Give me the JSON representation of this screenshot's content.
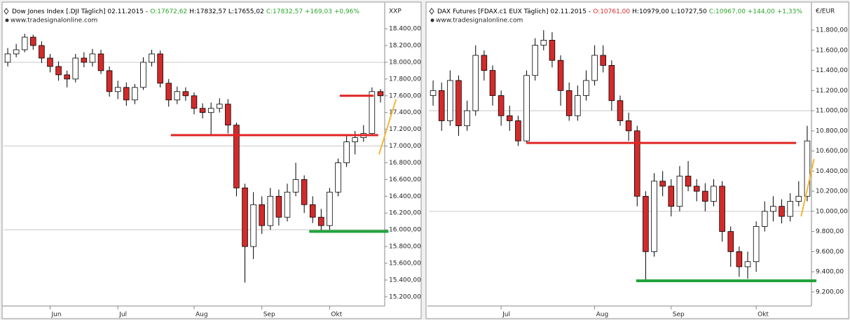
{
  "chart_data": [
    {
      "type": "candlestick",
      "header": [
        {
          "text": "Dow Jones Index [.DJI  Täglich] 02.11.2015 -",
          "color": "#000000"
        },
        {
          "text": "O:17672,62",
          "color": "#2aa52a"
        },
        {
          "text": "H:17832,57 L:17655,02",
          "color": "#000000"
        },
        {
          "text": "C:17832,57 +169,03 +0,96%",
          "color": "#2aa52a"
        }
      ],
      "source": "www.tradesignalonline.com",
      "unit": "XXP",
      "categories": [
        null,
        null,
        null,
        null,
        null,
        "Jun",
        null,
        null,
        null,
        null,
        null,
        null,
        null,
        "Jul",
        null,
        null,
        null,
        null,
        null,
        null,
        null,
        null,
        "Aug",
        null,
        null,
        null,
        null,
        null,
        null,
        null,
        "Sep",
        null,
        null,
        null,
        null,
        null,
        null,
        null,
        "Okt",
        null,
        null,
        null,
        null,
        null,
        null
      ],
      "open": [
        18000,
        18100,
        18150,
        18300,
        18200,
        18050,
        17950,
        17850,
        17800,
        18050,
        18000,
        18100,
        17900,
        17650,
        17700,
        17550,
        17700,
        18000,
        18100,
        17750,
        17550,
        17650,
        17600,
        17450,
        17400,
        17450,
        17500,
        17250,
        16500,
        15800,
        16300,
        16050,
        16400,
        16150,
        16450,
        16600,
        16300,
        16150,
        16050,
        16450,
        16800,
        17050,
        17100,
        17150,
        17650
      ],
      "high": [
        18170,
        18220,
        18340,
        18330,
        18250,
        18100,
        18010,
        17900,
        18100,
        18120,
        18160,
        18150,
        17950,
        17780,
        17760,
        17740,
        18060,
        18150,
        18140,
        17800,
        17710,
        17700,
        17640,
        17510,
        17520,
        17570,
        17560,
        17280,
        16550,
        16450,
        16400,
        16500,
        16480,
        16550,
        16800,
        16650,
        16400,
        16250,
        16500,
        16850,
        17120,
        17180,
        17250,
        17700,
        17680
      ],
      "low": [
        17950,
        18060,
        18120,
        18150,
        17990,
        17880,
        17780,
        17700,
        17760,
        17940,
        17950,
        17860,
        17590,
        17560,
        17480,
        17500,
        17670,
        17950,
        17700,
        17470,
        17500,
        17540,
        17380,
        17330,
        17130,
        17400,
        17150,
        16400,
        15370,
        15650,
        15950,
        16000,
        16050,
        16100,
        16400,
        16200,
        16080,
        15980,
        16000,
        16400,
        16750,
        16900,
        17050,
        17120,
        17520
      ],
      "close": [
        18100,
        18150,
        18300,
        18200,
        18050,
        17950,
        17850,
        17800,
        18050,
        18000,
        18100,
        17900,
        17650,
        17700,
        17550,
        17700,
        18000,
        18100,
        17750,
        17550,
        17650,
        17600,
        17450,
        17400,
        17450,
        17500,
        17250,
        16500,
        15800,
        16300,
        16050,
        16400,
        16150,
        16450,
        16600,
        16300,
        16150,
        16050,
        16450,
        16800,
        17050,
        17100,
        17150,
        17650,
        17600
      ],
      "up_color": "#ffffff",
      "down_color": "#d42a2a",
      "ylim": [
        15090,
        18660
      ],
      "yticks": [
        {
          "value": 15200,
          "label": "15.200,00"
        },
        {
          "value": 15400,
          "label": "15.400,00"
        },
        {
          "value": 15600,
          "label": "15.600,00"
        },
        {
          "value": 15800,
          "label": "15.800,00"
        },
        {
          "value": 16000,
          "label": "16.000,00"
        },
        {
          "value": 16200,
          "label": "16.200,00"
        },
        {
          "value": 16400,
          "label": "16.400,00"
        },
        {
          "value": 16600,
          "label": "16.600,00"
        },
        {
          "value": 16800,
          "label": "16.800,00"
        },
        {
          "value": 17000,
          "label": "17.000,00"
        },
        {
          "value": 17200,
          "label": "17.200,00"
        },
        {
          "value": 17400,
          "label": "17.400,00"
        },
        {
          "value": 17600,
          "label": "17.600,00"
        },
        {
          "value": 17800,
          "label": "17.800,00"
        },
        {
          "value": 18000,
          "label": "18.000,00"
        },
        {
          "value": 18200,
          "label": "18.200,00"
        },
        {
          "value": 18400,
          "label": "18.400,00"
        }
      ],
      "grid_lines": [
        16000,
        17000,
        18000
      ],
      "levels": [
        {
          "value": 17600,
          "color": "#e02424"
        },
        {
          "value": 17130,
          "color": "#e02424"
        },
        {
          "value": 15980,
          "color": "#22a33c"
        }
      ],
      "trend": {
        "from": 16900,
        "to": 17560,
        "color": "#f5b731"
      }
    },
    {
      "type": "candlestick",
      "header": [
        {
          "text": "DAX Futures [FDAX.c1 EUX  Täglich] 02.11.2015 -",
          "color": "#000000"
        },
        {
          "text": "O:10761,00",
          "color": "#d42a2a"
        },
        {
          "text": "H:10979,00 L:10727,50",
          "color": "#000000"
        },
        {
          "text": "C:10967,00 +144,00 +1,33%",
          "color": "#2aa52a"
        }
      ],
      "source": "www.tradesignalonline.com",
      "unit": "€/EUR",
      "categories": [
        null,
        null,
        null,
        null,
        null,
        null,
        null,
        null,
        "Jul",
        null,
        null,
        null,
        null,
        null,
        null,
        null,
        null,
        null,
        null,
        "Aug",
        null,
        null,
        null,
        null,
        null,
        null,
        null,
        null,
        "Sep",
        null,
        null,
        null,
        null,
        null,
        null,
        null,
        null,
        null,
        "Okt",
        null,
        null,
        null,
        null,
        null,
        null
      ],
      "open": [
        11150,
        11200,
        10900,
        11300,
        10850,
        11000,
        11550,
        11400,
        11150,
        10950,
        10900,
        10700,
        11350,
        11650,
        11700,
        11500,
        11200,
        10950,
        11150,
        11300,
        11550,
        11450,
        11100,
        10900,
        10800,
        10150,
        9600,
        10300,
        10250,
        10050,
        10350,
        10250,
        10200,
        10100,
        10250,
        9800,
        9600,
        9450,
        9500,
        9850,
        10000,
        10050,
        9950,
        10100,
        10150
      ],
      "high": [
        11300,
        11280,
        11400,
        11350,
        11100,
        11650,
        11600,
        11450,
        11200,
        11050,
        10950,
        11400,
        11720,
        11800,
        11780,
        11550,
        11280,
        11250,
        11400,
        11650,
        11650,
        11500,
        11150,
        10980,
        10850,
        10200,
        10380,
        10400,
        10320,
        10450,
        10500,
        10320,
        10280,
        10320,
        10300,
        9850,
        9650,
        9600,
        9900,
        10100,
        10150,
        10120,
        10180,
        10300,
        10850
      ],
      "low": [
        11050,
        10800,
        10850,
        10750,
        10800,
        10950,
        11300,
        11050,
        10850,
        10800,
        10650,
        10680,
        11300,
        11600,
        11430,
        11050,
        10900,
        10900,
        11100,
        11250,
        11380,
        11000,
        10850,
        10700,
        10050,
        9300,
        9550,
        10150,
        9950,
        10000,
        10200,
        10100,
        10000,
        10050,
        9700,
        9450,
        9350,
        9330,
        9400,
        9800,
        9900,
        9880,
        9900,
        10050,
        10100
      ],
      "close": [
        11200,
        10900,
        11300,
        10850,
        11000,
        11550,
        11400,
        11150,
        10950,
        10900,
        10700,
        11350,
        11650,
        11700,
        11500,
        11200,
        10950,
        11150,
        11300,
        11550,
        11450,
        11100,
        10900,
        10800,
        10150,
        9600,
        10300,
        10250,
        10050,
        10350,
        10250,
        10200,
        10100,
        10250,
        9800,
        9600,
        9450,
        9500,
        9850,
        10000,
        10050,
        9950,
        10100,
        10150,
        10700
      ],
      "up_color": "#ffffff",
      "down_color": "#d42a2a",
      "ylim": [
        9060,
        12030
      ],
      "yticks": [
        {
          "value": 9200,
          "label": "9.200,00"
        },
        {
          "value": 9400,
          "label": "9.400,00"
        },
        {
          "value": 9600,
          "label": "9.600,00"
        },
        {
          "value": 9800,
          "label": "9.800,00"
        },
        {
          "value": 10000,
          "label": "10.000,00"
        },
        {
          "value": 10200,
          "label": "10.200,00"
        },
        {
          "value": 10400,
          "label": "10.400,00"
        },
        {
          "value": 10600,
          "label": "10.600,00"
        },
        {
          "value": 10800,
          "label": "10.800,00"
        },
        {
          "value": 11000,
          "label": "11.000,00"
        },
        {
          "value": 11200,
          "label": "11.200,00"
        },
        {
          "value": 11400,
          "label": "11.400,00"
        },
        {
          "value": 11600,
          "label": "11.600,00"
        },
        {
          "value": 11800,
          "label": "11.800,00"
        }
      ],
      "grid_lines": [
        10000,
        11000
      ],
      "levels": [
        {
          "value": 10680,
          "color": "#e02424"
        },
        {
          "value": 9310,
          "color": "#22a33c"
        }
      ],
      "trend": {
        "from": 9950,
        "to": 10520,
        "color": "#f5b731"
      }
    }
  ]
}
